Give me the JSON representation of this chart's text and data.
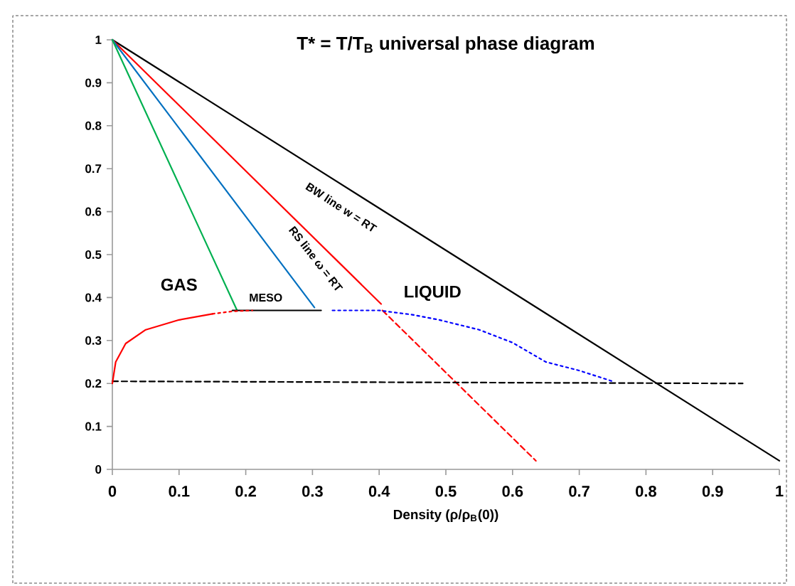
{
  "chart_data": {
    "type": "line",
    "title": "T* = T/T$_{B}$ universal phase diagram",
    "xlabel": "Density (ρ/ρ$_{B}$(0))",
    "xlim": [
      0,
      1
    ],
    "ylim": [
      0,
      1
    ],
    "xticks": [
      0,
      0.1,
      0.2,
      0.3,
      0.4,
      0.5,
      0.6,
      0.7,
      0.8,
      0.9,
      1
    ],
    "yticks": [
      0,
      0.1,
      0.2,
      0.3,
      0.4,
      0.5,
      0.6,
      0.7,
      0.8,
      0.9,
      1
    ],
    "grid": false,
    "marker": "none",
    "series": [
      {
        "color": "#000000",
        "x": [
          0,
          1
        ],
        "values": [
          1,
          0.02
        ],
        "line_style": "solid"
      },
      {
        "color": "#ff0000",
        "x": [
          0,
          0.403
        ],
        "values": [
          1,
          0.385
        ],
        "line_style": "solid"
      },
      {
        "color": "#ff0000",
        "x": [
          0.405,
          0.635
        ],
        "values": [
          0.37,
          0.02
        ],
        "line_style": "dashed"
      },
      {
        "color": "#0070c0",
        "x": [
          0,
          0.303
        ],
        "values": [
          1,
          0.377
        ],
        "line_style": "solid"
      },
      {
        "color": "#00b050",
        "x": [
          0,
          0.187
        ],
        "values": [
          1,
          0.37
        ],
        "line_style": "solid"
      },
      {
        "color": "#000000",
        "x": [
          0.18,
          0.313
        ],
        "values": [
          0.37,
          0.37
        ],
        "line_style": "solid"
      },
      {
        "color": "#000000",
        "x": [
          0,
          0.945
        ],
        "values": [
          0.205,
          0.2
        ],
        "line_style": "dashed"
      },
      {
        "color": "#ff0000",
        "x": [
          0,
          0.005,
          0.02,
          0.05,
          0.1,
          0.15
        ],
        "values": [
          0.2,
          0.25,
          0.293,
          0.325,
          0.348,
          0.362
        ],
        "line_style": "solid"
      },
      {
        "color": "#ff0000",
        "x": [
          0.15,
          0.18,
          0.21
        ],
        "values": [
          0.362,
          0.368,
          0.37
        ],
        "line_style": "dotted"
      },
      {
        "color": "#0000ff",
        "x": [
          0.33,
          0.4,
          0.45,
          0.49,
          0.55,
          0.6,
          0.65,
          0.7,
          0.75
        ],
        "values": [
          0.37,
          0.37,
          0.36,
          0.348,
          0.325,
          0.295,
          0.25,
          0.23,
          0.205
        ],
        "line_style": "dotted"
      }
    ],
    "annotations": [
      "GAS",
      "MESO",
      "LIQUID",
      "BW line w = RT",
      "RS line ω = RT"
    ]
  }
}
